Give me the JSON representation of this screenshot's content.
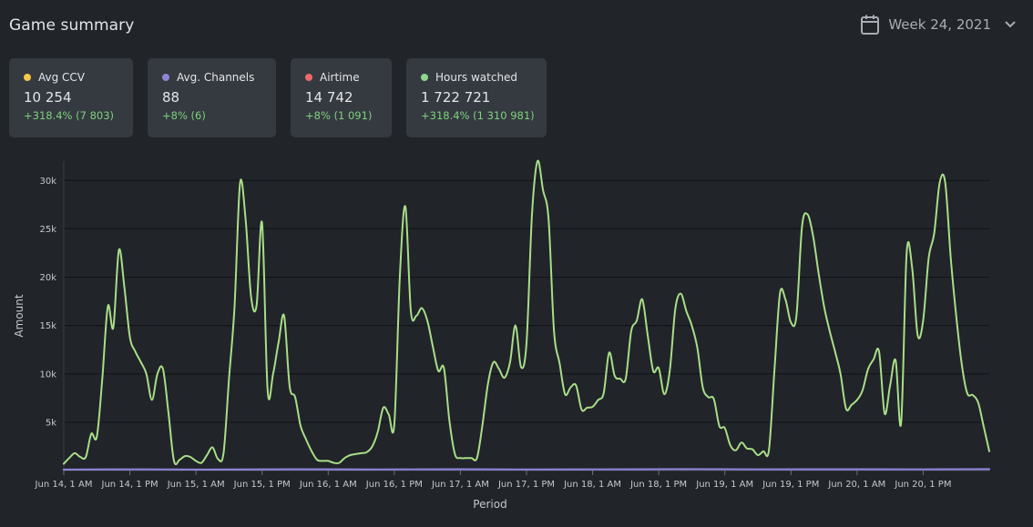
{
  "header": {
    "title": "Game summary",
    "week_label": "Week 24, 2021",
    "calendar_icon": "calendar-icon",
    "chevron_icon": "chevron-down-icon"
  },
  "cards": [
    {
      "label": "Avg CCV",
      "value": "10 254",
      "delta": "+318.4% (7 803)",
      "color": "#f5c84c"
    },
    {
      "label": "Avg. Channels",
      "value": "88",
      "delta": "+8% (6)",
      "color": "#8f84d6"
    },
    {
      "label": "Airtime",
      "value": "14 742",
      "delta": "+8% (1 091)",
      "color": "#ef6b6b"
    },
    {
      "label": "Hours watched",
      "value": "1 722 721",
      "delta": "+318.4% (1 310 981)",
      "color": "#8ed88e"
    }
  ],
  "colors": {
    "background": "#212429",
    "card": "#353a40",
    "delta_positive": "#7fd07f",
    "hours_line": "#a8de88",
    "channels_line": "#8f84d6",
    "grid": "#111315"
  },
  "chart_data": {
    "type": "line",
    "xlabel": "Period",
    "ylabel": "Amount",
    "ylim": [
      0,
      32000
    ],
    "yticks": [
      5000,
      10000,
      15000,
      20000,
      25000,
      30000
    ],
    "ytick_labels": [
      "5k",
      "10k",
      "15k",
      "20k",
      "25k",
      "30k"
    ],
    "xticks": [
      "Jun 14, 1 AM",
      "Jun 14, 1 PM",
      "Jun 15, 1 AM",
      "Jun 15, 1 PM",
      "Jun 16, 1 AM",
      "Jun 16, 1 PM",
      "Jun 17, 1 AM",
      "Jun 17, 1 PM",
      "Jun 18, 1 AM",
      "Jun 18, 1 PM",
      "Jun 19, 1 AM",
      "Jun 19, 1 PM",
      "Jun 20, 1 AM",
      "Jun 20, 1 PM"
    ],
    "grid": true,
    "x_unit": "hours after Jun 14, 1 AM",
    "series": [
      {
        "color": "#a8de88",
        "points": [
          [
            0,
            700
          ],
          [
            1,
            1300
          ],
          [
            2,
            1800
          ],
          [
            3,
            1400
          ],
          [
            4,
            1400
          ],
          [
            5,
            3800
          ],
          [
            6,
            3500
          ],
          [
            7,
            9500
          ],
          [
            8,
            17000
          ],
          [
            9,
            14800
          ],
          [
            10,
            22800
          ],
          [
            11,
            19000
          ],
          [
            12,
            13800
          ],
          [
            13,
            12300
          ],
          [
            14,
            11200
          ],
          [
            15,
            10000
          ],
          [
            16,
            7300
          ],
          [
            17,
            10000
          ],
          [
            18,
            10500
          ],
          [
            19,
            6000
          ],
          [
            20,
            1000
          ],
          [
            21,
            1100
          ],
          [
            22,
            1500
          ],
          [
            23,
            1400
          ],
          [
            24,
            1000
          ],
          [
            25,
            800
          ],
          [
            26,
            1600
          ],
          [
            27,
            2400
          ],
          [
            28,
            1200
          ],
          [
            29,
            1800
          ],
          [
            30,
            9500
          ],
          [
            31,
            17000
          ],
          [
            32,
            29700
          ],
          [
            33,
            26000
          ],
          [
            34,
            18000
          ],
          [
            35,
            17100
          ],
          [
            36,
            25600
          ],
          [
            37,
            8300
          ],
          [
            38,
            10000
          ],
          [
            39,
            13300
          ],
          [
            40,
            16000
          ],
          [
            41,
            8700
          ],
          [
            42,
            7600
          ],
          [
            43,
            4600
          ],
          [
            44,
            3200
          ],
          [
            45,
            2000
          ],
          [
            46,
            1100
          ],
          [
            47,
            1000
          ],
          [
            48,
            1000
          ],
          [
            49,
            800
          ],
          [
            50,
            800
          ],
          [
            51,
            1300
          ],
          [
            52,
            1600
          ],
          [
            53,
            1700
          ],
          [
            54,
            1800
          ],
          [
            55,
            1900
          ],
          [
            56,
            2500
          ],
          [
            57,
            4000
          ],
          [
            58,
            6500
          ],
          [
            59,
            5800
          ],
          [
            60,
            4800
          ],
          [
            61,
            20000
          ],
          [
            62,
            27300
          ],
          [
            63,
            16500
          ],
          [
            64,
            16000
          ],
          [
            65,
            16800
          ],
          [
            66,
            15500
          ],
          [
            67,
            12800
          ],
          [
            68,
            10300
          ],
          [
            69,
            10600
          ],
          [
            70,
            5200
          ],
          [
            71,
            1700
          ],
          [
            72,
            1300
          ],
          [
            73,
            1300
          ],
          [
            74,
            1300
          ],
          [
            75,
            1300
          ],
          [
            76,
            4700
          ],
          [
            77,
            9000
          ],
          [
            78,
            11200
          ],
          [
            79,
            10500
          ],
          [
            80,
            9600
          ],
          [
            81,
            11200
          ],
          [
            82,
            15000
          ],
          [
            83,
            10700
          ],
          [
            84,
            13200
          ],
          [
            85,
            26500
          ],
          [
            86,
            32000
          ],
          [
            87,
            29000
          ],
          [
            88,
            26000
          ],
          [
            89,
            14400
          ],
          [
            90,
            11100
          ],
          [
            91,
            7900
          ],
          [
            92,
            8600
          ],
          [
            93,
            8800
          ],
          [
            94,
            6300
          ],
          [
            95,
            6500
          ],
          [
            96,
            6600
          ],
          [
            97,
            7300
          ],
          [
            98,
            8000
          ],
          [
            99,
            12200
          ],
          [
            100,
            9800
          ],
          [
            101,
            9500
          ],
          [
            102,
            9500
          ],
          [
            103,
            14400
          ],
          [
            104,
            15500
          ],
          [
            105,
            17700
          ],
          [
            106,
            14000
          ],
          [
            107,
            10300
          ],
          [
            108,
            10600
          ],
          [
            109,
            7900
          ],
          [
            110,
            10300
          ],
          [
            111,
            16700
          ],
          [
            112,
            18300
          ],
          [
            113,
            16500
          ],
          [
            114,
            15000
          ],
          [
            115,
            12700
          ],
          [
            116,
            8600
          ],
          [
            117,
            7600
          ],
          [
            118,
            7400
          ],
          [
            119,
            4600
          ],
          [
            120,
            4400
          ],
          [
            121,
            2600
          ],
          [
            122,
            2100
          ],
          [
            123,
            2900
          ],
          [
            124,
            2300
          ],
          [
            125,
            2200
          ],
          [
            126,
            1600
          ],
          [
            127,
            2000
          ],
          [
            128,
            2100
          ],
          [
            129,
            10300
          ],
          [
            130,
            18300
          ],
          [
            131,
            17700
          ],
          [
            132,
            15300
          ],
          [
            133,
            16000
          ],
          [
            134,
            25200
          ],
          [
            135,
            26500
          ],
          [
            136,
            24300
          ],
          [
            137,
            20500
          ],
          [
            138,
            17000
          ],
          [
            139,
            14500
          ],
          [
            140,
            12300
          ],
          [
            141,
            10000
          ],
          [
            142,
            6400
          ],
          [
            143,
            6800
          ],
          [
            144,
            7300
          ],
          [
            145,
            8300
          ],
          [
            146,
            10500
          ],
          [
            147,
            11500
          ],
          [
            148,
            12300
          ],
          [
            149,
            5900
          ],
          [
            150,
            8800
          ],
          [
            151,
            11400
          ],
          [
            152,
            4900
          ],
          [
            153,
            22500
          ],
          [
            154,
            21000
          ],
          [
            155,
            14000
          ],
          [
            156,
            15500
          ],
          [
            157,
            22000
          ],
          [
            158,
            24500
          ],
          [
            159,
            29800
          ],
          [
            160,
            29800
          ],
          [
            161,
            22000
          ],
          [
            162,
            16000
          ],
          [
            163,
            11000
          ],
          [
            164,
            8000
          ],
          [
            165,
            7800
          ],
          [
            166,
            7000
          ],
          [
            167,
            4500
          ],
          [
            168,
            2000
          ]
        ]
      },
      {
        "color": "#8f84d6",
        "points": [
          [
            0,
            100
          ],
          [
            14,
            120
          ],
          [
            28,
            100
          ],
          [
            42,
            130
          ],
          [
            56,
            110
          ],
          [
            70,
            130
          ],
          [
            84,
            110
          ],
          [
            98,
            120
          ],
          [
            112,
            140
          ],
          [
            126,
            120
          ],
          [
            140,
            130
          ],
          [
            154,
            120
          ],
          [
            168,
            140
          ]
        ]
      }
    ]
  }
}
